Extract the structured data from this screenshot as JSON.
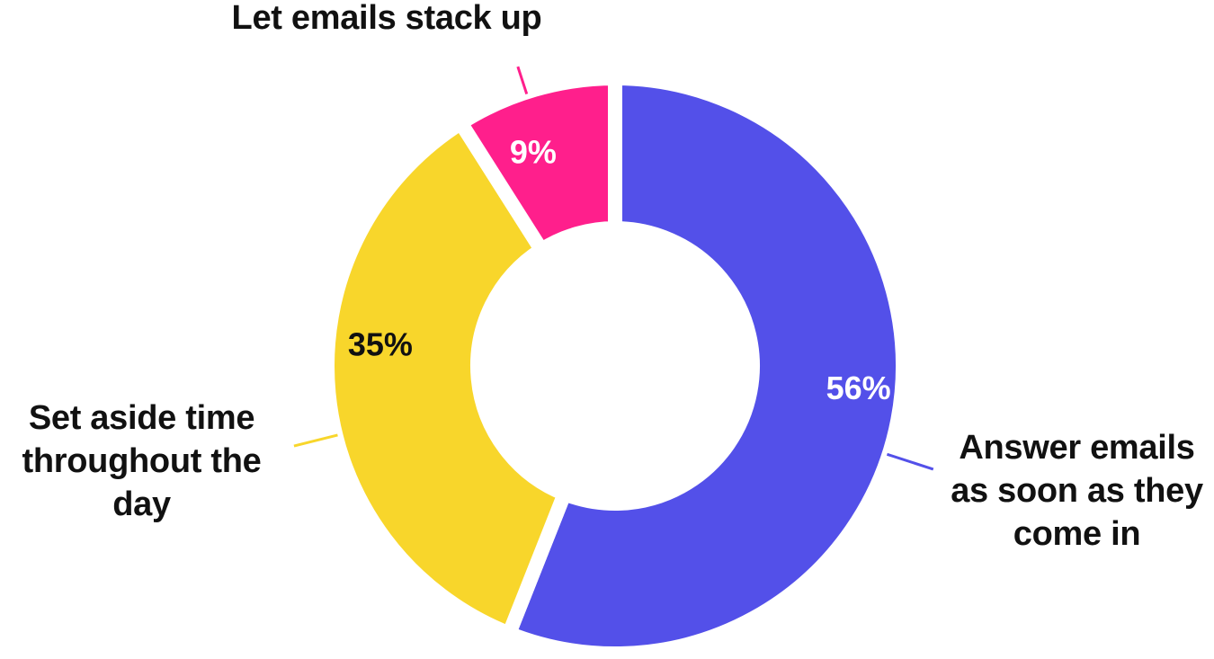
{
  "chart_data": {
    "type": "pie",
    "categories": [
      "Answer emails as soon as they come in",
      "Set aside time throughout the day",
      "Let emails stack up"
    ],
    "values": [
      56,
      35,
      9
    ],
    "value_labels": [
      "56%",
      "35%",
      "9%"
    ],
    "colors": [
      "#5350E9",
      "#F8D62B",
      "#FF1F8C"
    ],
    "value_label_colors": [
      "#FFFFFF",
      "#111111",
      "#FFFFFF"
    ],
    "donut": true,
    "legend": "none"
  }
}
